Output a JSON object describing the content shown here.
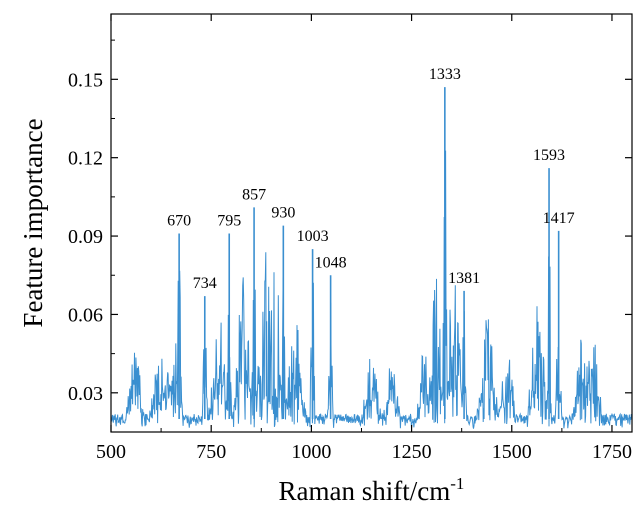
{
  "chart_data": {
    "type": "line",
    "xlabel": "Raman shift/cm",
    "xlabel_superscript": "-1",
    "ylabel": "Feature importance",
    "xlim": [
      500,
      1800
    ],
    "ylim": [
      0.015,
      0.175
    ],
    "x_ticks": [
      500,
      750,
      1000,
      1250,
      1500,
      1750
    ],
    "x_tick_labels": [
      "500",
      "750",
      "1000",
      "1250",
      "1500",
      "1750"
    ],
    "y_ticks": [
      0.03,
      0.06,
      0.09,
      0.12,
      0.15
    ],
    "y_tick_labels": [
      "0.03",
      "0.06",
      "0.09",
      "0.12",
      "0.15"
    ],
    "grid": false,
    "legend": "none",
    "line_color": "#3a8fd0",
    "baseline_range": [
      0.016,
      0.045
    ],
    "peaks": [
      {
        "x": 670,
        "y": 0.091,
        "label": "670"
      },
      {
        "x": 734,
        "y": 0.067,
        "label": "734"
      },
      {
        "x": 795,
        "y": 0.091,
        "label": "795"
      },
      {
        "x": 857,
        "y": 0.101,
        "label": "857"
      },
      {
        "x": 930,
        "y": 0.094,
        "label": "930"
      },
      {
        "x": 1003,
        "y": 0.085,
        "label": "1003"
      },
      {
        "x": 1048,
        "y": 0.075,
        "label": "1048"
      },
      {
        "x": 1333,
        "y": 0.147,
        "label": "1333"
      },
      {
        "x": 1381,
        "y": 0.069,
        "label": "1381"
      },
      {
        "x": 1593,
        "y": 0.116,
        "label": "1593"
      },
      {
        "x": 1417,
        "y": 0.092,
        "label": "1417",
        "x_position": 1617
      }
    ],
    "shoulders": [
      {
        "x": 560,
        "y": 0.046
      },
      {
        "x": 620,
        "y": 0.047
      },
      {
        "x": 655,
        "y": 0.055
      },
      {
        "x": 770,
        "y": 0.06
      },
      {
        "x": 830,
        "y": 0.075
      },
      {
        "x": 885,
        "y": 0.088
      },
      {
        "x": 910,
        "y": 0.082
      },
      {
        "x": 960,
        "y": 0.06
      },
      {
        "x": 1150,
        "y": 0.045
      },
      {
        "x": 1200,
        "y": 0.042
      },
      {
        "x": 1290,
        "y": 0.062
      },
      {
        "x": 1310,
        "y": 0.075
      },
      {
        "x": 1355,
        "y": 0.075
      },
      {
        "x": 1440,
        "y": 0.06
      },
      {
        "x": 1490,
        "y": 0.048
      },
      {
        "x": 1565,
        "y": 0.065
      },
      {
        "x": 1680,
        "y": 0.06
      },
      {
        "x": 1700,
        "y": 0.058
      }
    ]
  }
}
